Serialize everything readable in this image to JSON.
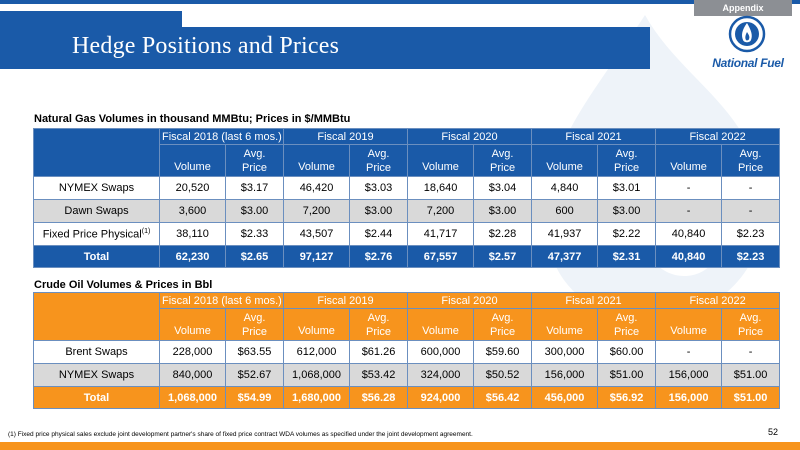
{
  "header": {
    "appendix_tag": "Appendix",
    "title": "Hedge Positions and Prices",
    "logo_text": "National Fuel"
  },
  "colors": {
    "brand_blue": "#1a5aa8",
    "accent_orange": "#f7941d",
    "row_gray": "#d9d9d9",
    "tab_gray": "#8c8f94"
  },
  "gas": {
    "caption": "Natural Gas Volumes in thousand MMBtu; Prices in $/MMBtu",
    "periods": [
      "Fiscal 2018 (last 6 mos.)",
      "Fiscal 2019",
      "Fiscal 2020",
      "Fiscal 2021",
      "Fiscal 2022"
    ],
    "volume_label": "Volume",
    "price_label_1": "Avg.",
    "price_label_2": "Price",
    "rows": [
      {
        "label": "NYMEX Swaps",
        "footnote": "",
        "values": [
          "20,520",
          "$3.17",
          "46,420",
          "$3.03",
          "18,640",
          "$3.04",
          "4,840",
          "$3.01",
          "-",
          "-"
        ]
      },
      {
        "label": "Dawn Swaps",
        "footnote": "",
        "values": [
          "3,600",
          "$3.00",
          "7,200",
          "$3.00",
          "7,200",
          "$3.00",
          "600",
          "$3.00",
          "-",
          "-"
        ]
      },
      {
        "label": "Fixed Price Physical",
        "footnote": "(1)",
        "values": [
          "38,110",
          "$2.33",
          "43,507",
          "$2.44",
          "41,717",
          "$2.28",
          "41,937",
          "$2.22",
          "40,840",
          "$2.23"
        ]
      }
    ],
    "total": {
      "label": "Total",
      "values": [
        "62,230",
        "$2.65",
        "97,127",
        "$2.76",
        "67,557",
        "$2.57",
        "47,377",
        "$2.31",
        "40,840",
        "$2.23"
      ]
    }
  },
  "oil": {
    "caption": "Crude Oil Volumes & Prices in Bbl",
    "periods": [
      "Fiscal 2018 (last 6 mos.)",
      "Fiscal 2019",
      "Fiscal 2020",
      "Fiscal 2021",
      "Fiscal 2022"
    ],
    "volume_label": "Volume",
    "price_label_1": "Avg.",
    "price_label_2": "Price",
    "rows": [
      {
        "label": "Brent Swaps",
        "values": [
          "228,000",
          "$63.55",
          "612,000",
          "$61.26",
          "600,000",
          "$59.60",
          "300,000",
          "$60.00",
          "-",
          "-"
        ]
      },
      {
        "label": "NYMEX Swaps",
        "values": [
          "840,000",
          "$52.67",
          "1,068,000",
          "$53.42",
          "324,000",
          "$50.52",
          "156,000",
          "$51.00",
          "156,000",
          "$51.00"
        ]
      }
    ],
    "total": {
      "label": "Total",
      "values": [
        "1,068,000",
        "$54.99",
        "1,680,000",
        "$56.28",
        "924,000",
        "$56.42",
        "456,000",
        "$56.92",
        "156,000",
        "$51.00"
      ]
    }
  },
  "footer": {
    "footnote": "(1)    Fixed price physical sales exclude joint development partner's share of fixed price contract WDA volumes as specified under the joint development agreement.",
    "page_number": "52"
  }
}
